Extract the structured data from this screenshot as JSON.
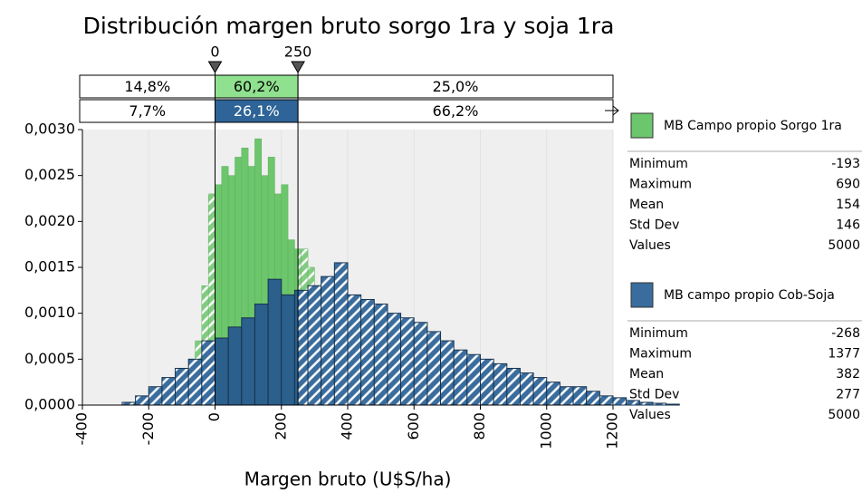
{
  "chart_data": {
    "type": "histogram",
    "title": "Distribución margen bruto sorgo 1ra y soja 1ra",
    "x_label": "Margen bruto (U$S/ha)",
    "xlim": [
      -400,
      1200
    ],
    "xticks": [
      -400,
      -200,
      0,
      200,
      400,
      600,
      800,
      1000,
      1200
    ],
    "ylim": [
      0,
      0.003
    ],
    "yticks": [
      {
        "value": 0,
        "label": "0,0000"
      },
      {
        "value": 0.0005,
        "label": "0,0005"
      },
      {
        "value": 0.001,
        "label": "0,0010"
      },
      {
        "value": 0.0015,
        "label": "0,0015"
      },
      {
        "value": 0.002,
        "label": "0,0020"
      },
      {
        "value": 0.0025,
        "label": "0,0025"
      },
      {
        "value": 0.003,
        "label": "0,0030"
      }
    ],
    "delimiters": [
      0,
      250
    ],
    "series": [
      {
        "name": "MB Campo propio Sorgo 1ra",
        "color": "#82cc82",
        "region_labels": [
          "14,8%",
          "60,2%",
          "25,0%"
        ],
        "bins": [
          -200,
          -180,
          -160,
          -140,
          -120,
          -100,
          -80,
          -60,
          -40,
          -20,
          0,
          20,
          40,
          60,
          80,
          100,
          120,
          140,
          160,
          180,
          200,
          220,
          240,
          260,
          280,
          300,
          320,
          340,
          360,
          380,
          400,
          420,
          440,
          460,
          480,
          500,
          520,
          540,
          560,
          580,
          600,
          620,
          640,
          660,
          680,
          700
        ],
        "values": [
          5e-05,
          0.0001,
          0.0001,
          0.00015,
          0.0002,
          0.0003,
          0.0005,
          0.0007,
          0.0013,
          0.0023,
          0.0024,
          0.0026,
          0.0025,
          0.0027,
          0.0028,
          0.0026,
          0.0029,
          0.0025,
          0.0027,
          0.0023,
          0.0024,
          0.0018,
          0.0017,
          0.0017,
          0.0015,
          0.001,
          0.0008,
          0.0006,
          0.0004,
          0.0003,
          0.0002,
          0.00015,
          0.0001,
          8e-05,
          5e-05,
          4e-05,
          3e-05,
          2e-05,
          1e-05,
          1e-05,
          0,
          0,
          0,
          0,
          0
        ],
        "stats": [
          {
            "label": "Minimum",
            "value": -193
          },
          {
            "label": "Maximum",
            "value": 690
          },
          {
            "label": "Mean",
            "value": 154
          },
          {
            "label": "Std Dev",
            "value": 146
          },
          {
            "label": "Values",
            "value": 5000
          }
        ]
      },
      {
        "name": "MB campo propio Cob-Soja",
        "color": "#3a6d9e",
        "region_labels": [
          "7,7%",
          "26,1%",
          "66,2%"
        ],
        "bins": [
          -280,
          -240,
          -200,
          -160,
          -120,
          -80,
          -40,
          0,
          40,
          80,
          120,
          160,
          200,
          240,
          280,
          320,
          360,
          400,
          440,
          480,
          520,
          560,
          600,
          640,
          680,
          720,
          760,
          800,
          840,
          880,
          920,
          960,
          1000,
          1040,
          1080,
          1120,
          1160,
          1200,
          1240,
          1280,
          1320,
          1360,
          1400
        ],
        "values": [
          3e-05,
          0.0001,
          0.0002,
          0.0003,
          0.0004,
          0.0005,
          0.0007,
          0.00073,
          0.00085,
          0.00095,
          0.0011,
          0.00137,
          0.0012,
          0.00125,
          0.0013,
          0.0014,
          0.00155,
          0.0012,
          0.00115,
          0.0011,
          0.001,
          0.00095,
          0.0009,
          0.0008,
          0.0007,
          0.0006,
          0.00055,
          0.0005,
          0.00045,
          0.0004,
          0.00035,
          0.0003,
          0.00025,
          0.0002,
          0.0002,
          0.00015,
          0.0001,
          8e-05,
          5e-05,
          3e-05,
          2e-05,
          1e-05
        ],
        "stats": [
          {
            "label": "Minimum",
            "value": -268
          },
          {
            "label": "Maximum",
            "value": 1377
          },
          {
            "label": "Mean",
            "value": 382
          },
          {
            "label": "Std Dev",
            "value": 277
          },
          {
            "label": "Values",
            "value": 5000
          }
        ]
      }
    ]
  }
}
